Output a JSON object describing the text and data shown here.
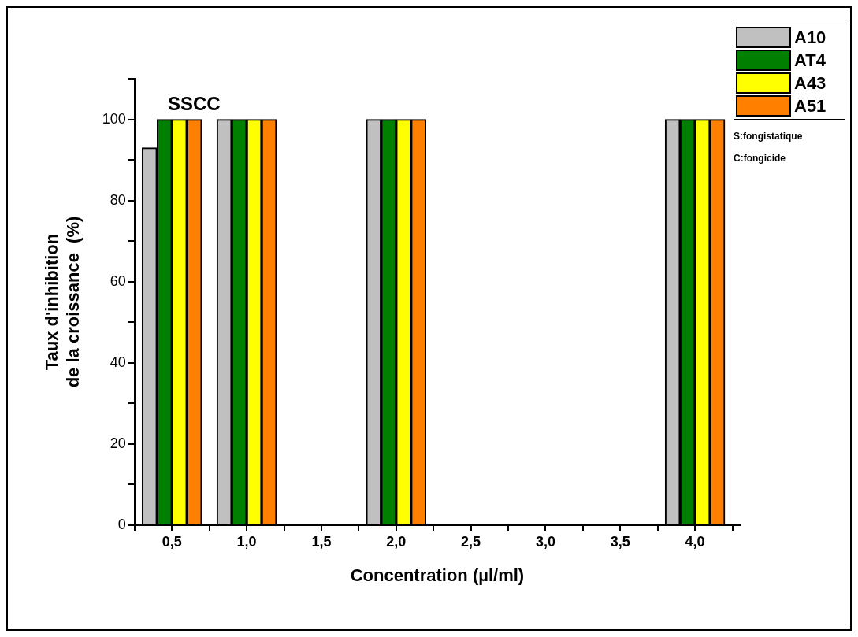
{
  "chart_data": {
    "type": "bar",
    "xlabel": "Concentration (µl/ml)",
    "ylabel": "Taux d'inhibition\nde la croissance  (%)",
    "x": [
      0.5,
      1.0,
      2.0,
      4.0
    ],
    "series": [
      {
        "name": "A10",
        "color": "#c0c0c0",
        "values": [
          93,
          100,
          100,
          100
        ]
      },
      {
        "name": "AT4",
        "color": "#007f00",
        "values": [
          100,
          100,
          100,
          100
        ]
      },
      {
        "name": "A43",
        "color": "#ffff00",
        "values": [
          100,
          100,
          100,
          100
        ]
      },
      {
        "name": "A51",
        "color": "#ff7f00",
        "values": [
          100,
          100,
          100,
          100
        ]
      }
    ],
    "xlim": [
      0.25,
      4.3
    ],
    "xticks": [
      {
        "value": 0.25,
        "label": null
      },
      {
        "value": 0.5,
        "label": "0,5"
      },
      {
        "value": 0.75,
        "label": null
      },
      {
        "value": 1.0,
        "label": "1,0"
      },
      {
        "value": 1.25,
        "label": null
      },
      {
        "value": 1.5,
        "label": "1,5"
      },
      {
        "value": 1.75,
        "label": null
      },
      {
        "value": 2.0,
        "label": "2,0"
      },
      {
        "value": 2.25,
        "label": null
      },
      {
        "value": 2.5,
        "label": "2,5"
      },
      {
        "value": 2.75,
        "label": null
      },
      {
        "value": 3.0,
        "label": "3,0"
      },
      {
        "value": 3.25,
        "label": null
      },
      {
        "value": 3.5,
        "label": "3,5"
      },
      {
        "value": 3.75,
        "label": null
      },
      {
        "value": 4.0,
        "label": "4,0"
      },
      {
        "value": 4.25,
        "label": null
      }
    ],
    "ylim": [
      0,
      110
    ],
    "yticks": [
      0,
      {
        "value": 10,
        "label": null
      },
      20,
      {
        "value": 30,
        "label": null
      },
      40,
      {
        "value": 50,
        "label": null
      },
      60,
      {
        "value": 70,
        "label": null
      },
      80,
      {
        "value": 90,
        "label": null
      },
      100,
      {
        "value": 110,
        "label": null
      }
    ],
    "annotations": [
      "SSCC",
      "S:fongistatique",
      "C:fongicide"
    ],
    "grid": false,
    "legend": "top right"
  }
}
